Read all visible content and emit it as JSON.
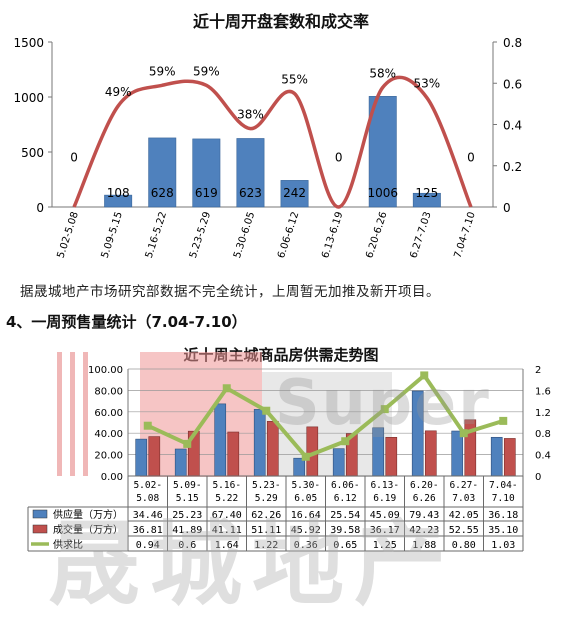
{
  "chart_data": [
    {
      "type": "bar+line",
      "title": "近十周开盘套数和成交率",
      "categories": [
        "5.02-5.08",
        "5.09-5.15",
        "5.16-5.22",
        "5.23-5.29",
        "5.30-6.05",
        "6.06-6.12",
        "6.13-6.19",
        "6.20-6.26",
        "6.27-7.03",
        "7.04-7.10"
      ],
      "bars": {
        "values": [
          0,
          108,
          628,
          619,
          623,
          242,
          0,
          1006,
          125,
          0
        ],
        "labels": [
          "",
          "108",
          "628",
          "619",
          "623",
          "242",
          "",
          "1006",
          "125",
          ""
        ],
        "color": "#4f81bd"
      },
      "line": {
        "values": [
          0,
          0.49,
          0.59,
          0.59,
          0.38,
          0.55,
          0,
          0.58,
          0.53,
          0
        ],
        "labels": [
          "0",
          "49%",
          "59%",
          "59%",
          "38%",
          "55%",
          "0",
          "58%",
          "53%",
          "0"
        ],
        "color": "#c0504d"
      },
      "y_left": {
        "range": [
          0,
          1500
        ],
        "ticks": [
          "0",
          "500",
          "1000",
          "1500"
        ]
      },
      "y_right": {
        "range": [
          0,
          0.8
        ],
        "ticks": [
          "0",
          "0.2",
          "0.4",
          "0.6",
          "0.8"
        ]
      },
      "grid": false
    },
    {
      "type": "bar+line",
      "title": "近十周主城商品房供需走势图",
      "categories": [
        [
          "5.02-",
          "5.08"
        ],
        [
          "5.09-",
          "5.15"
        ],
        [
          "5.16-",
          "5.22"
        ],
        [
          "5.23-",
          "5.29"
        ],
        [
          "5.30-",
          "6.05"
        ],
        [
          "6.06-",
          "6.12"
        ],
        [
          "6.13-",
          "6.19"
        ],
        [
          "6.20-",
          "6.26"
        ],
        [
          "6.27-",
          "7.03"
        ],
        [
          "7.04-",
          "7.10"
        ]
      ],
      "series": [
        {
          "name": "供应量（万方）",
          "values": [
            34.46,
            25.23,
            67.4,
            62.26,
            16.64,
            25.54,
            45.09,
            79.43,
            42.05,
            36.18
          ],
          "labels": [
            "34.46",
            "25.23",
            "67.40",
            "62.26",
            "16.64",
            "25.54",
            "45.09",
            "79.43",
            "42.05",
            "36.18"
          ],
          "kind": "bar",
          "color": "#4f81bd"
        },
        {
          "name": "成交量（万方）",
          "values": [
            36.81,
            41.89,
            41.11,
            51.11,
            45.92,
            39.58,
            36.17,
            42.23,
            52.55,
            35.1
          ],
          "labels": [
            "36.81",
            "41.89",
            "41.11",
            "51.11",
            "45.92",
            "39.58",
            "36.17",
            "42.23",
            "52.55",
            "35.10"
          ],
          "kind": "bar",
          "color": "#c0504d"
        },
        {
          "name": "供求比",
          "values": [
            0.94,
            0.6,
            1.64,
            1.22,
            0.36,
            0.65,
            1.25,
            1.88,
            0.8,
            1.03
          ],
          "labels": [
            "0.94",
            "0.6",
            "1.64",
            "1.22",
            "0.36",
            "0.65",
            "1.25",
            "1.88",
            "0.80",
            "1.03"
          ],
          "kind": "line",
          "axis": "right",
          "color": "#9bbb59"
        }
      ],
      "y_left": {
        "range": [
          0,
          100
        ],
        "ticks": [
          "0.00",
          "20.00",
          "40.00",
          "60.00",
          "80.00",
          "100.00"
        ]
      },
      "y_right": {
        "range": [
          0,
          2
        ],
        "ticks": [
          "0",
          "0.4",
          "0.8",
          "1.2",
          "1.6",
          "2"
        ]
      },
      "grid": true
    }
  ],
  "note": "据晟城地产市场研究部数据不完全统计，上周暂无加推及新开项目。",
  "section_heading": "4、一周预售量统计（7.04-7.10）",
  "watermark": {
    "latin": "Super",
    "cjk": "晟城地产"
  }
}
